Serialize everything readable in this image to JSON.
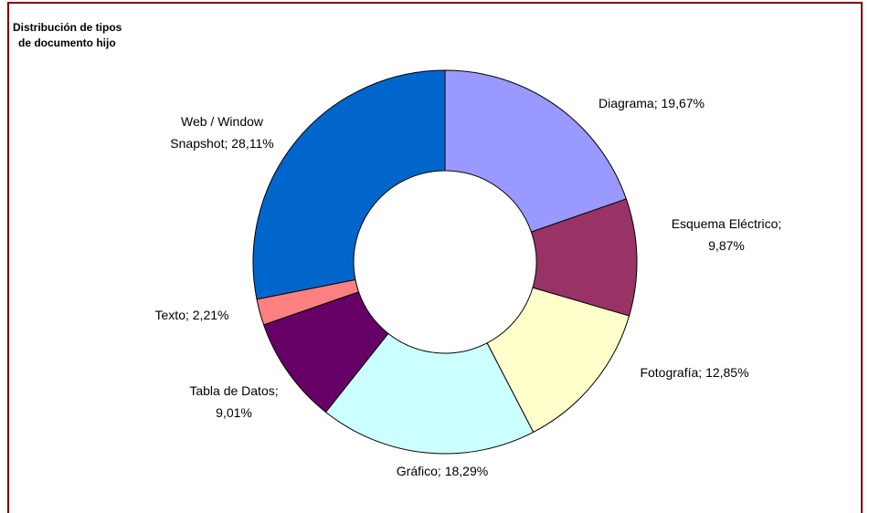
{
  "chart_data": {
    "type": "donut",
    "title": [
      "Distribución de tipos",
      "de documento hijo"
    ],
    "categories": [
      "Diagrama",
      "Esquema Eléctrico",
      "Fotografía",
      "Gráfico",
      "Tabla de Datos",
      "Texto",
      "Web / Window Snapshot"
    ],
    "values": [
      19.67,
      9.87,
      12.85,
      18.29,
      9.01,
      2.21,
      28.11
    ],
    "value_labels": [
      "19,67%",
      "9,87%",
      "12,85%",
      "18,29%",
      "9,01%",
      "2,21%",
      "28,11%"
    ],
    "separator": "; ",
    "colors": [
      "#9999ff",
      "#993366",
      "#ffffcc",
      "#ccffff",
      "#660066",
      "#ff8080",
      "#0066cc"
    ]
  }
}
